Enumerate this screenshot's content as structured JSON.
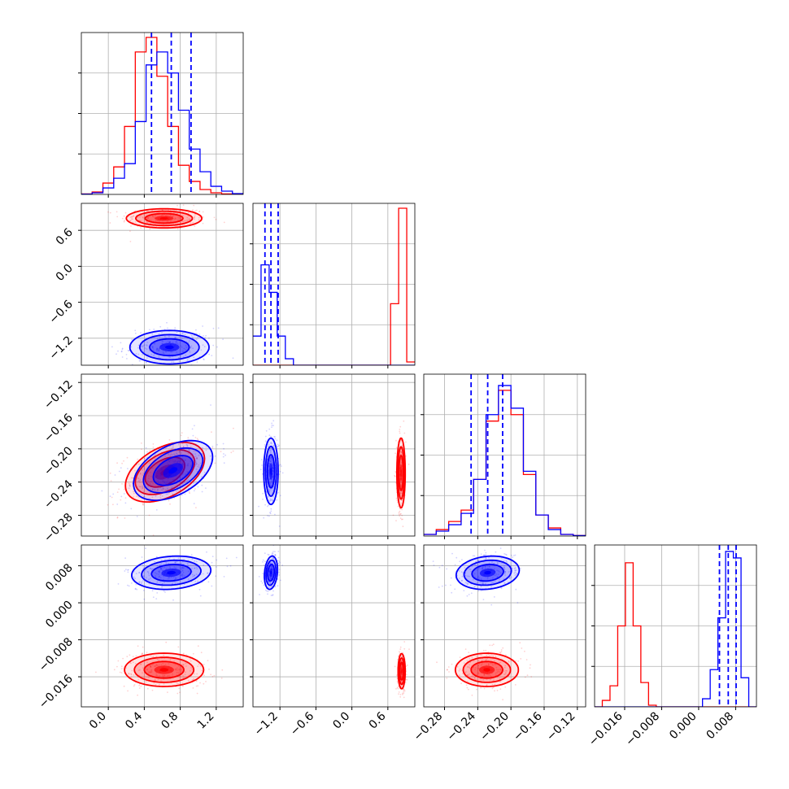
{
  "chart_data": {
    "type": "corner",
    "description_free": true,
    "parameters": [
      {
        "range": [
          -0.3,
          1.5
        ],
        "ticks": [
          0.0,
          0.4,
          0.8,
          1.2
        ],
        "tick_labels": [
          "0.0",
          "0.4",
          "0.8",
          "1.2"
        ],
        "quantiles_blue": [
          0.48,
          0.7,
          0.92
        ],
        "hist_blue": [
          0.002,
          0.01,
          0.04,
          0.1,
          0.19,
          0.45,
          0.8,
          0.88,
          0.75,
          0.52,
          0.28,
          0.14,
          0.05,
          0.02,
          0.005
        ],
        "hist_red": [
          0.003,
          0.015,
          0.07,
          0.17,
          0.42,
          0.88,
          0.97,
          0.73,
          0.42,
          0.18,
          0.08,
          0.03,
          0.01,
          0.003,
          0.001
        ]
      },
      {
        "range": [
          -1.65,
          1.05
        ],
        "ticks": [
          -1.2,
          -0.6,
          0.0,
          0.6
        ],
        "tick_labels": [
          "−1.2",
          "−0.6",
          "0.0",
          "0.6"
        ],
        "quantiles_blue": [
          -1.45,
          -1.35,
          -1.23
        ],
        "hist_blue": [
          0.18,
          0.62,
          0.45,
          0.18,
          0.04,
          0.0,
          0.0,
          0.0,
          0.0,
          0.0,
          0.0,
          0.0,
          0.0,
          0.0,
          0.0,
          0.0,
          0.0,
          0.0,
          0.0,
          0.0
        ],
        "hist_red": [
          0.0,
          0.0,
          0.0,
          0.0,
          0.0,
          0.0,
          0.0,
          0.0,
          0.0,
          0.0,
          0.0,
          0.0,
          0.0,
          0.0,
          0.0,
          0.0,
          0.0,
          0.38,
          0.97,
          0.02
        ]
      },
      {
        "range": [
          -0.305,
          -0.11
        ],
        "ticks": [
          -0.28,
          -0.24,
          -0.2,
          -0.16,
          -0.12
        ],
        "tick_labels": [
          "−0.28",
          "−0.24",
          "−0.20",
          "−0.16",
          "−0.12"
        ],
        "quantiles_blue": [
          -0.248,
          -0.228,
          -0.21
        ],
        "hist_blue": [
          0.01,
          0.03,
          0.07,
          0.14,
          0.35,
          0.75,
          0.93,
          0.79,
          0.4,
          0.13,
          0.04,
          0.01,
          0.003
        ],
        "hist_red": [
          0.01,
          0.04,
          0.09,
          0.16,
          0.35,
          0.71,
          0.9,
          0.75,
          0.38,
          0.13,
          0.05,
          0.01,
          0.003
        ]
      },
      {
        "range": [
          -0.0225,
          0.0125
        ],
        "ticks": [
          -0.016,
          -0.008,
          0.0,
          0.008
        ],
        "tick_labels": [
          "−0.016",
          "−0.008",
          "0.000",
          "0.008"
        ],
        "quantiles_blue": [
          0.0045,
          0.0064,
          0.0081
        ],
        "hist_blue": [
          0.0,
          0.0,
          0.0,
          0.0,
          0.0,
          0.0,
          0.0,
          0.0,
          0.0,
          0.0,
          0.0,
          0.0,
          0.0,
          0.0,
          0.05,
          0.23,
          0.55,
          0.96,
          0.92,
          0.18,
          0.0
        ],
        "hist_red": [
          0.0,
          0.04,
          0.13,
          0.5,
          0.89,
          0.5,
          0.15,
          0.01,
          0.0,
          0.0,
          0.0,
          0.0,
          0.0,
          0.0,
          0.0,
          0.0,
          0.0,
          0.0,
          0.0,
          0.0,
          0.0
        ]
      }
    ],
    "pairs": [
      {
        "x": 0,
        "y": 1,
        "blue": {
          "mx": 0.68,
          "my": -1.35,
          "sx": 0.22,
          "sy": 0.14,
          "rho": 0.0
        },
        "red": {
          "mx": 0.62,
          "my": 0.8,
          "sx": 0.21,
          "sy": 0.08,
          "rho": 0.0
        }
      },
      {
        "x": 0,
        "y": 2,
        "blue": {
          "mx": 0.72,
          "my": -0.226,
          "sx": 0.22,
          "sy": 0.018,
          "rho": 0.45
        },
        "red": {
          "mx": 0.63,
          "my": -0.228,
          "sx": 0.22,
          "sy": 0.018,
          "rho": 0.45
        }
      },
      {
        "x": 1,
        "y": 2,
        "blue": {
          "mx": -1.35,
          "my": -0.227,
          "sx": 0.06,
          "sy": 0.02,
          "rho": 0.0
        },
        "red": {
          "mx": 0.82,
          "my": -0.229,
          "sx": 0.035,
          "sy": 0.021,
          "rho": 0.0
        }
      },
      {
        "x": 0,
        "y": 3,
        "blue": {
          "mx": 0.7,
          "my": 0.0065,
          "sx": 0.22,
          "sy": 0.0018,
          "rho": 0.15
        },
        "red": {
          "mx": 0.62,
          "my": -0.0145,
          "sx": 0.22,
          "sy": 0.0018,
          "rho": 0.0
        }
      },
      {
        "x": 1,
        "y": 3,
        "blue": {
          "mx": -1.35,
          "my": 0.0065,
          "sx": 0.055,
          "sy": 0.0018,
          "rho": 0.2
        },
        "red": {
          "mx": 0.83,
          "my": -0.0148,
          "sx": 0.03,
          "sy": 0.0019,
          "rho": 0.0
        }
      },
      {
        "x": 2,
        "y": 3,
        "blue": {
          "mx": -0.228,
          "my": 0.0065,
          "sx": 0.019,
          "sy": 0.0018,
          "rho": 0.15
        },
        "red": {
          "mx": -0.229,
          "my": -0.0145,
          "sx": 0.019,
          "sy": 0.0018,
          "rho": 0.0
        }
      }
    ],
    "series": [
      {
        "name": "",
        "color": "#0000ff"
      },
      {
        "name": "",
        "color": "#ff0000"
      }
    ],
    "grid": true,
    "title": "",
    "legend": "none"
  }
}
